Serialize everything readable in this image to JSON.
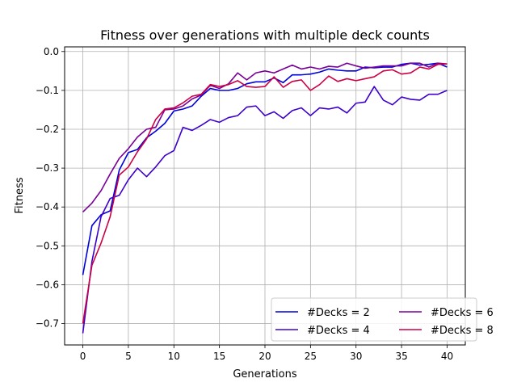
{
  "chart_data": {
    "type": "line",
    "title": "Fitness over generations with multiple deck counts",
    "xlabel": "Generations",
    "ylabel": "Fitness",
    "xlim": [
      -2,
      42
    ],
    "ylim": [
      -0.755,
      0.012
    ],
    "xticks": [
      0,
      5,
      10,
      15,
      20,
      25,
      30,
      35,
      40
    ],
    "xtick_labels": [
      "0",
      "5",
      "10",
      "15",
      "20",
      "25",
      "30",
      "35",
      "40"
    ],
    "yticks": [
      0.0,
      -0.1,
      -0.2,
      -0.3,
      -0.4,
      -0.5,
      -0.6,
      -0.7
    ],
    "ytick_labels": [
      "0.0",
      "−0.1",
      "−0.2",
      "−0.3",
      "−0.4",
      "−0.5",
      "−0.6",
      "−0.7"
    ],
    "grid": true,
    "legend": {
      "placement": "lower-right",
      "columns": 2
    },
    "x": [
      0,
      1,
      2,
      3,
      4,
      5,
      6,
      7,
      8,
      9,
      10,
      11,
      12,
      13,
      14,
      15,
      16,
      17,
      18,
      19,
      20,
      21,
      22,
      23,
      24,
      25,
      26,
      27,
      28,
      29,
      30,
      31,
      32,
      33,
      34,
      35,
      36,
      37,
      38,
      39,
      40
    ],
    "series": [
      {
        "name": "#Decks = 2",
        "color": "#0000dd",
        "values": [
          -0.575,
          -0.448,
          -0.42,
          -0.41,
          -0.305,
          -0.26,
          -0.252,
          -0.222,
          -0.205,
          -0.185,
          -0.153,
          -0.148,
          -0.14,
          -0.115,
          -0.095,
          -0.1,
          -0.1,
          -0.095,
          -0.083,
          -0.078,
          -0.078,
          -0.068,
          -0.08,
          -0.06,
          -0.06,
          -0.058,
          -0.053,
          -0.045,
          -0.048,
          -0.05,
          -0.05,
          -0.04,
          -0.042,
          -0.04,
          -0.04,
          -0.033,
          -0.03,
          -0.035,
          -0.033,
          -0.03,
          -0.04
        ]
      },
      {
        "name": "#Decks = 4",
        "color": "#3d00cc",
        "values": [
          -0.725,
          -0.54,
          -0.425,
          -0.378,
          -0.37,
          -0.33,
          -0.3,
          -0.322,
          -0.297,
          -0.268,
          -0.255,
          -0.195,
          -0.203,
          -0.19,
          -0.175,
          -0.182,
          -0.17,
          -0.165,
          -0.143,
          -0.14,
          -0.165,
          -0.155,
          -0.172,
          -0.152,
          -0.145,
          -0.165,
          -0.145,
          -0.148,
          -0.143,
          -0.158,
          -0.133,
          -0.13,
          -0.09,
          -0.125,
          -0.137,
          -0.117,
          -0.123,
          -0.125,
          -0.11,
          -0.11,
          -0.1
        ]
      },
      {
        "name": "#Decks = 6",
        "color": "#7a0099",
        "values": [
          -0.413,
          -0.39,
          -0.358,
          -0.315,
          -0.275,
          -0.25,
          -0.22,
          -0.2,
          -0.195,
          -0.15,
          -0.148,
          -0.14,
          -0.122,
          -0.112,
          -0.087,
          -0.095,
          -0.083,
          -0.055,
          -0.073,
          -0.055,
          -0.05,
          -0.055,
          -0.045,
          -0.035,
          -0.045,
          -0.04,
          -0.045,
          -0.038,
          -0.04,
          -0.03,
          -0.037,
          -0.043,
          -0.04,
          -0.037,
          -0.037,
          -0.037,
          -0.03,
          -0.03,
          -0.04,
          -0.03,
          -0.032
        ]
      },
      {
        "name": "#Decks = 8",
        "color": "#cc0044",
        "values": [
          -0.7,
          -0.55,
          -0.493,
          -0.425,
          -0.318,
          -0.297,
          -0.258,
          -0.225,
          -0.175,
          -0.148,
          -0.145,
          -0.132,
          -0.115,
          -0.11,
          -0.085,
          -0.09,
          -0.085,
          -0.075,
          -0.09,
          -0.092,
          -0.09,
          -0.065,
          -0.092,
          -0.077,
          -0.073,
          -0.1,
          -0.085,
          -0.063,
          -0.077,
          -0.07,
          -0.075,
          -0.07,
          -0.065,
          -0.05,
          -0.047,
          -0.058,
          -0.055,
          -0.04,
          -0.045,
          -0.033,
          -0.032
        ]
      }
    ]
  }
}
